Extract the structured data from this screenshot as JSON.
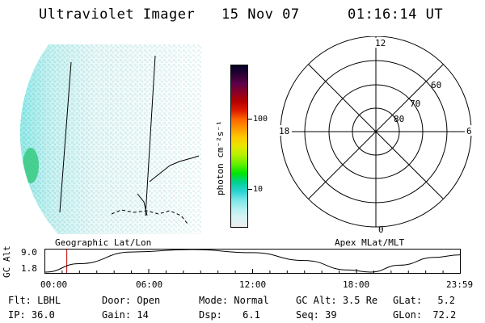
{
  "header": {
    "instrument": "Ultraviolet Imager",
    "date": "15 Nov 07",
    "time": "01:16:14 UT"
  },
  "colorbar": {
    "label": "photon cm⁻²s⁻¹",
    "ticks": [
      "100",
      "10"
    ],
    "colors": [
      "#000028",
      "#2a0032",
      "#5a004a",
      "#8a0026",
      "#b40000",
      "#dc1a00",
      "#ff6400",
      "#ff9600",
      "#ffc800",
      "#e8e800",
      "#b4f000",
      "#64f000",
      "#00e600",
      "#00d28c",
      "#28d2d2",
      "#78e6e6",
      "#b4f0f0",
      "#d8f4f4",
      "#ececec"
    ]
  },
  "polar_plot": {
    "hour_labels": {
      "top": "12",
      "bottom": "0",
      "left": "18",
      "right": "6"
    },
    "lat_labels": [
      "60",
      "70",
      "80"
    ]
  },
  "timeline": {
    "left_label": "Geographic Lat/Lon",
    "right_label": "Apex MLat/MLT",
    "y_axis_title": "GC Alt",
    "y_ticks": [
      "9.0",
      "1.8"
    ],
    "x_ticks": [
      "00:00",
      "06:00",
      "12:00",
      "18:00",
      "23:59"
    ],
    "marker_time": "01:16",
    "altitude_curve": [
      {
        "t": 0.0,
        "alt": 1.8
      },
      {
        "t": 2.0,
        "alt": 4.5
      },
      {
        "t": 5.0,
        "alt": 8.2
      },
      {
        "t": 8.5,
        "alt": 9.0
      },
      {
        "t": 12.0,
        "alt": 8.0
      },
      {
        "t": 15.0,
        "alt": 5.5
      },
      {
        "t": 17.5,
        "alt": 2.5
      },
      {
        "t": 18.8,
        "alt": 1.8
      },
      {
        "t": 20.5,
        "alt": 4.0
      },
      {
        "t": 22.5,
        "alt": 6.5
      },
      {
        "t": 24.0,
        "alt": 7.3
      }
    ]
  },
  "info": {
    "filter_label": "Flt:",
    "filter": "LBHL",
    "ip_label": "IP:",
    "ip": "36.0",
    "door_label": "Door:",
    "door": "Open",
    "gain_label": "Gain:",
    "gain": "14",
    "mode_label": "Mode:",
    "mode": "Normal",
    "dsp_label": "Dsp:",
    "dsp": "6.1",
    "gcalt_label": "GC Alt:",
    "gcalt": "3.5 Re",
    "seq_label": "Seq:",
    "seq": "39",
    "glat_label": "GLat:",
    "glat": "5.2",
    "glon_label": "GLon:",
    "glon": "72.2"
  }
}
